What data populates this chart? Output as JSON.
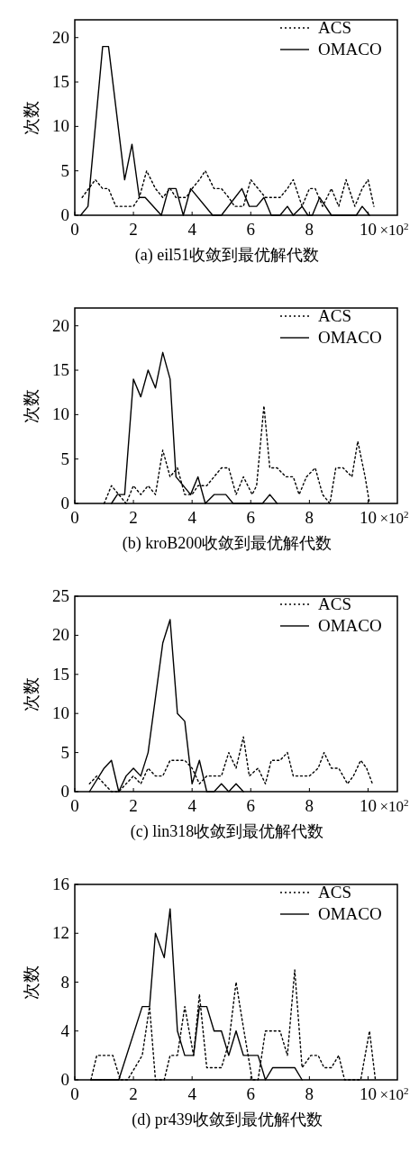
{
  "chart_data": [
    {
      "type": "line",
      "title": "(a)  eil51收敛到最优解代数",
      "xlabel": "×10$^{2}$",
      "ylabel": "次数",
      "xlim": [
        0,
        11
      ],
      "xticks": [
        0,
        2,
        4,
        6,
        8,
        10
      ],
      "ylim": [
        0,
        22
      ],
      "yticks": [
        0,
        5,
        10,
        15,
        20
      ],
      "grid": false,
      "legend": "top right",
      "marker": "none",
      "series": [
        {
          "name": "ACS",
          "color": "#000000",
          "line_style": "dotted",
          "x": [
            0.25,
            0.7,
            0.95,
            1.15,
            1.4,
            1.7,
            2.0,
            2.2,
            2.45,
            2.75,
            3.0,
            3.25,
            3.45,
            3.8,
            4.0,
            4.25,
            4.45,
            4.75,
            5.0,
            5.25,
            5.45,
            5.75,
            6.0,
            6.25,
            6.5,
            6.75,
            7.0,
            7.25,
            7.45,
            7.75,
            8.0,
            8.2,
            8.45,
            8.75,
            9.0,
            9.25,
            9.55,
            9.8,
            10.0,
            10.2
          ],
          "values": [
            2,
            4,
            3,
            3,
            1,
            1,
            1,
            2,
            5,
            3,
            2,
            3,
            2,
            2,
            3,
            4,
            5,
            3,
            3,
            2,
            1,
            1,
            4,
            3,
            2,
            2,
            2,
            3,
            4,
            1,
            3,
            3,
            1,
            3,
            1,
            4,
            1,
            3,
            4,
            1
          ]
        },
        {
          "name": "OMACO",
          "color": "#000000",
          "line_style": "solid",
          "x": [
            0.2,
            0.45,
            0.95,
            1.15,
            1.7,
            1.95,
            2.2,
            2.4,
            2.95,
            3.2,
            3.45,
            3.7,
            3.95,
            4.7,
            5.0,
            5.7,
            5.95,
            6.2,
            6.45,
            6.7,
            7.0,
            7.25,
            7.45,
            7.75,
            7.95,
            8.1,
            8.35,
            8.75,
            9.6,
            9.8,
            10.05
          ],
          "values": [
            0,
            1,
            19,
            19,
            4,
            8,
            2,
            2,
            0,
            3,
            3,
            0,
            3,
            0,
            0,
            3,
            1,
            1,
            2,
            0,
            0,
            1,
            0,
            1,
            0,
            0,
            2,
            0,
            0,
            1,
            0
          ]
        }
      ]
    },
    {
      "type": "line",
      "title": "(b)  kroB200收敛到最优解代数",
      "xlabel": "×10$^{2}$",
      "ylabel": "次数",
      "xlim": [
        0,
        11
      ],
      "xticks": [
        0,
        2,
        4,
        6,
        8,
        10
      ],
      "ylim": [
        0,
        22
      ],
      "yticks": [
        0,
        5,
        10,
        15,
        20
      ],
      "grid": false,
      "legend": "top right",
      "marker": "none",
      "series": [
        {
          "name": "ACS",
          "color": "#000000",
          "line_style": "dotted",
          "x": [
            1.0,
            1.25,
            1.5,
            1.75,
            2.0,
            2.25,
            2.5,
            2.75,
            3.0,
            3.25,
            3.5,
            3.75,
            4.0,
            4.2,
            4.5,
            4.75,
            5.0,
            5.25,
            5.5,
            5.75,
            6.05,
            6.2,
            6.45,
            6.65,
            6.9,
            7.2,
            7.45,
            7.65,
            7.9,
            8.2,
            8.45,
            8.7,
            8.9,
            9.15,
            9.45,
            9.65,
            9.9,
            10.05
          ],
          "values": [
            0,
            2,
            1,
            0,
            2,
            1,
            2,
            1,
            6,
            3,
            4,
            1,
            1,
            2,
            2,
            3,
            4,
            4,
            1,
            3,
            1,
            2,
            11,
            4,
            4,
            3,
            3,
            1,
            3,
            4,
            1,
            0,
            4,
            4,
            3,
            7,
            3,
            0
          ]
        },
        {
          "name": "OMACO",
          "color": "#000000",
          "line_style": "solid",
          "x": [
            1.25,
            1.45,
            1.7,
            2.0,
            2.25,
            2.5,
            2.75,
            3.0,
            3.25,
            3.45,
            3.95,
            4.2,
            4.45,
            4.75,
            5.15,
            5.4,
            6.4,
            6.65,
            6.9
          ],
          "values": [
            0,
            1,
            1,
            14,
            12,
            15,
            13,
            17,
            14,
            3,
            1,
            3,
            0,
            1,
            1,
            0,
            0,
            1,
            0
          ]
        }
      ]
    },
    {
      "type": "line",
      "title": "(c)  lin318收敛到最优解代数",
      "xlabel": "×10$^{2}$",
      "ylabel": "次数",
      "xlim": [
        0,
        11
      ],
      "xticks": [
        0,
        2,
        4,
        6,
        8,
        10
      ],
      "ylim": [
        0,
        25
      ],
      "yticks": [
        0,
        5,
        10,
        15,
        20,
        25
      ],
      "grid": false,
      "legend": "top right",
      "marker": "none",
      "series": [
        {
          "name": "ACS",
          "color": "#000000",
          "line_style": "dotted",
          "x": [
            0.5,
            0.75,
            1.0,
            1.25,
            1.5,
            1.75,
            2.0,
            2.25,
            2.5,
            2.75,
            3.0,
            3.25,
            3.5,
            3.75,
            4.0,
            4.25,
            4.5,
            4.75,
            5.0,
            5.25,
            5.5,
            5.75,
            5.95,
            6.25,
            6.5,
            6.7,
            7.0,
            7.25,
            7.45,
            7.75,
            8.0,
            8.3,
            8.5,
            8.75,
            9.0,
            9.3,
            9.5,
            9.75,
            9.95,
            10.15
          ],
          "values": [
            1,
            2,
            1,
            0,
            0,
            1,
            2,
            1,
            3,
            2,
            2,
            4,
            4,
            4,
            3,
            1,
            2,
            2,
            2,
            5,
            3,
            7,
            2,
            3,
            1,
            4,
            4,
            5,
            2,
            2,
            2,
            3,
            5,
            3,
            3,
            1,
            2,
            4,
            3,
            1
          ]
        },
        {
          "name": "OMACO",
          "color": "#000000",
          "line_style": "solid",
          "x": [
            0.5,
            1.0,
            1.25,
            1.5,
            1.75,
            2.0,
            2.25,
            2.5,
            2.75,
            3.0,
            3.25,
            3.5,
            3.75,
            4.0,
            4.25,
            4.5,
            4.75,
            5.0,
            5.25,
            5.5,
            5.75
          ],
          "values": [
            0,
            3,
            4,
            0,
            2,
            3,
            2,
            5,
            12,
            19,
            22,
            10,
            9,
            1,
            4,
            0,
            0,
            1,
            0,
            1,
            0
          ]
        }
      ]
    },
    {
      "type": "line",
      "title": "(d)  pr439收敛到最优解代数",
      "xlabel": "×10$^{2}$",
      "ylabel": "次数",
      "xlim": [
        0,
        11
      ],
      "xticks": [
        0,
        2,
        4,
        6,
        8,
        10
      ],
      "ylim": [
        0,
        16
      ],
      "yticks": [
        0,
        4,
        8,
        12,
        16
      ],
      "grid": false,
      "legend": "top right",
      "marker": "none",
      "series": [
        {
          "name": "ACS",
          "color": "#000000",
          "line_style": "dotted",
          "x": [
            0.55,
            0.75,
            1.3,
            1.55,
            1.8,
            2.05,
            2.3,
            2.55,
            2.75,
            3.05,
            3.25,
            3.5,
            3.75,
            4.05,
            4.25,
            4.5,
            5.0,
            5.25,
            5.5,
            5.7,
            6.05,
            6.25,
            6.5,
            7.0,
            7.25,
            7.5,
            7.75,
            8.05,
            8.3,
            8.5,
            8.75,
            9.0,
            9.2,
            9.75,
            10.05,
            10.25
          ],
          "values": [
            0,
            2,
            2,
            0,
            0,
            1,
            2,
            6,
            0,
            0,
            2,
            2,
            6,
            2,
            7,
            1,
            1,
            3,
            8,
            5,
            0,
            0,
            4,
            4,
            2,
            9,
            1,
            2,
            2,
            1,
            1,
            2,
            0,
            0,
            4,
            0
          ]
        },
        {
          "name": "OMACO",
          "color": "#000000",
          "line_style": "solid",
          "x": [
            0.55,
            1.5,
            2.3,
            2.55,
            2.75,
            3.05,
            3.25,
            3.5,
            3.75,
            4.05,
            4.25,
            4.5,
            4.75,
            5.0,
            5.25,
            5.5,
            5.75,
            6.25,
            6.5,
            6.75,
            7.5,
            7.75
          ],
          "values": [
            0,
            0,
            6,
            6,
            12,
            10,
            14,
            4,
            2,
            2,
            6,
            6,
            4,
            4,
            2,
            4,
            2,
            2,
            0,
            1,
            1,
            0
          ]
        }
      ]
    }
  ]
}
